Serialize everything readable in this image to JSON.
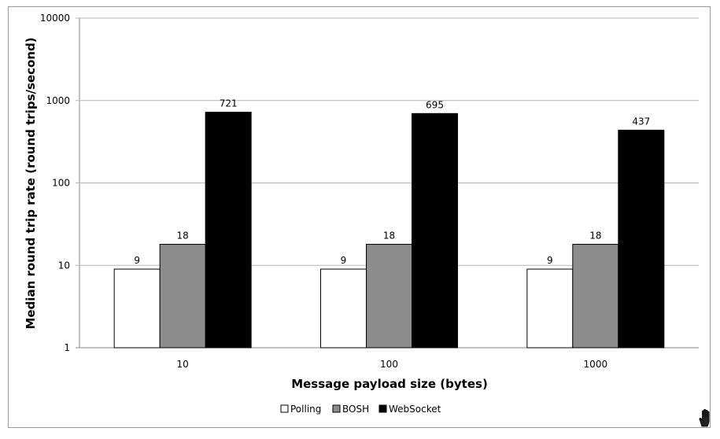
{
  "chart_data": {
    "type": "bar",
    "title": "",
    "xlabel": "Message payload size (bytes)",
    "ylabel": "Median round trip rate (round trips/second)",
    "yscale": "log",
    "ylim": [
      1,
      10000
    ],
    "yticks": [
      "1",
      "10",
      "100",
      "1000",
      "10000"
    ],
    "grid": true,
    "legend_position": "bottom",
    "categories": [
      "10",
      "100",
      "1000"
    ],
    "series": [
      {
        "name": "Polling",
        "color": "#ffffff",
        "values": [
          9,
          9,
          9
        ]
      },
      {
        "name": "BOSH",
        "color": "#8c8c8c",
        "values": [
          18,
          18,
          18
        ]
      },
      {
        "name": "WebSocket",
        "color": "#000000",
        "values": [
          721,
          695,
          437
        ]
      }
    ],
    "data_labels": [
      [
        "9",
        "9",
        "9"
      ],
      [
        "18",
        "18",
        "18"
      ],
      [
        "721",
        "695",
        "437"
      ]
    ]
  },
  "cursor_icon": "hand-cursor-icon"
}
